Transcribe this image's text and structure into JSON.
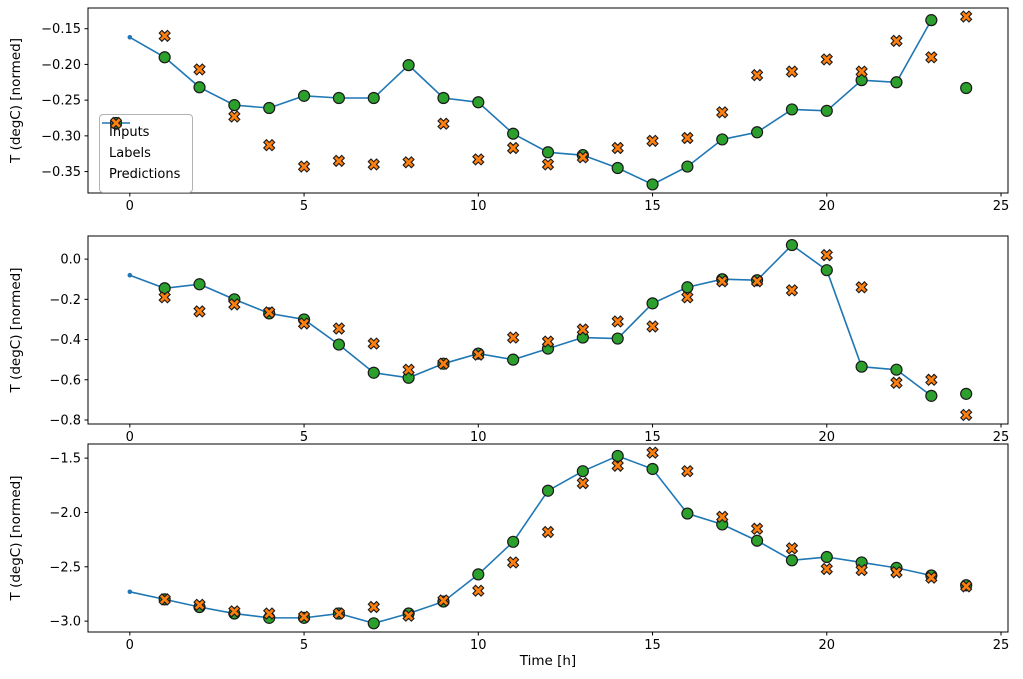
{
  "figure": {
    "xlabel": "Time [h]",
    "ylabel": "T (degC) [normed]",
    "background": "#ffffff",
    "colors": {
      "inputs": "#1f77b4",
      "labels": "#2ca02c",
      "predictions": "#ff7f0e",
      "marker_edge": "#1a1a1a",
      "axis": "#000000",
      "legend_border": "#b3b3b3"
    },
    "legend": {
      "position": "center-left-of-subplot-1",
      "entries": [
        {
          "label": "Inputs"
        },
        {
          "label": "Labels"
        },
        {
          "label": "Predictions"
        }
      ]
    }
  },
  "chart_data": [
    {
      "type": "line",
      "title": "",
      "xlabel": "",
      "ylabel": "T (degC) [normed]",
      "xlim": [
        -1.2,
        25.2
      ],
      "ylim": [
        -0.38,
        -0.121
      ],
      "xticks": [
        0,
        5,
        10,
        15,
        20,
        25
      ],
      "xtick_labels": [
        "0",
        "5",
        "10",
        "15",
        "20",
        "25"
      ],
      "yticks": [
        -0.15,
        -0.2,
        -0.25,
        -0.3,
        -0.35
      ],
      "ytick_labels": [
        "−0.15",
        "−0.20",
        "−0.25",
        "−0.30",
        "−0.35"
      ],
      "grid": false,
      "series": [
        {
          "name": "Inputs",
          "type": "line+dot",
          "x": [
            0,
            1,
            2,
            3,
            4,
            5,
            6,
            7,
            8,
            9,
            10,
            11,
            12,
            13,
            14,
            15,
            16,
            17,
            18,
            19,
            20,
            21,
            22,
            23
          ],
          "y": [
            -0.162,
            -0.19,
            -0.232,
            -0.257,
            -0.261,
            -0.244,
            -0.247,
            -0.247,
            -0.201,
            -0.247,
            -0.253,
            -0.297,
            -0.323,
            -0.327,
            -0.345,
            -0.368,
            -0.343,
            -0.305,
            -0.295,
            -0.263,
            -0.265,
            -0.222,
            -0.225,
            -0.138
          ]
        },
        {
          "name": "Labels",
          "type": "scatter-circle",
          "x": [
            1,
            2,
            3,
            4,
            5,
            6,
            7,
            8,
            9,
            10,
            11,
            12,
            13,
            14,
            15,
            16,
            17,
            18,
            19,
            20,
            21,
            22,
            23,
            24
          ],
          "y": [
            -0.19,
            -0.232,
            -0.257,
            -0.261,
            -0.244,
            -0.247,
            -0.247,
            -0.201,
            -0.247,
            -0.253,
            -0.297,
            -0.323,
            -0.327,
            -0.345,
            -0.368,
            -0.343,
            -0.305,
            -0.295,
            -0.263,
            -0.265,
            -0.222,
            -0.225,
            -0.138,
            -0.233
          ]
        },
        {
          "name": "Predictions",
          "type": "scatter-x",
          "x": [
            1,
            2,
            3,
            4,
            5,
            6,
            7,
            8,
            9,
            10,
            11,
            12,
            13,
            14,
            15,
            16,
            17,
            18,
            19,
            20,
            21,
            22,
            23,
            24
          ],
          "y": [
            -0.16,
            -0.207,
            -0.273,
            -0.313,
            -0.343,
            -0.335,
            -0.34,
            -0.337,
            -0.283,
            -0.333,
            -0.317,
            -0.34,
            -0.33,
            -0.317,
            -0.307,
            -0.303,
            -0.267,
            -0.215,
            -0.21,
            -0.193,
            -0.21,
            -0.167,
            -0.19,
            -0.133
          ]
        }
      ]
    },
    {
      "type": "line",
      "title": "",
      "xlabel": "",
      "ylabel": "T (degC) [normed]",
      "xlim": [
        -1.2,
        25.2
      ],
      "ylim": [
        -0.82,
        0.115
      ],
      "xticks": [
        0,
        5,
        10,
        15,
        20,
        25
      ],
      "xtick_labels": [
        "0",
        "5",
        "10",
        "15",
        "20",
        "25"
      ],
      "yticks": [
        0.0,
        -0.2,
        -0.4,
        -0.6,
        -0.8
      ],
      "ytick_labels": [
        "0.0",
        "−0.2",
        "−0.4",
        "−0.6",
        "−0.8"
      ],
      "grid": false,
      "series": [
        {
          "name": "Inputs",
          "type": "line+dot",
          "x": [
            0,
            1,
            2,
            3,
            4,
            5,
            6,
            7,
            8,
            9,
            10,
            11,
            12,
            13,
            14,
            15,
            16,
            17,
            18,
            19,
            20,
            21,
            22,
            23
          ],
          "y": [
            -0.08,
            -0.145,
            -0.125,
            -0.2,
            -0.27,
            -0.3,
            -0.425,
            -0.565,
            -0.59,
            -0.52,
            -0.47,
            -0.5,
            -0.445,
            -0.39,
            -0.395,
            -0.22,
            -0.14,
            -0.1,
            -0.105,
            0.07,
            -0.055,
            -0.535,
            -0.55,
            -0.68
          ]
        },
        {
          "name": "Labels",
          "type": "scatter-circle",
          "x": [
            1,
            2,
            3,
            4,
            5,
            6,
            7,
            8,
            9,
            10,
            11,
            12,
            13,
            14,
            15,
            16,
            17,
            18,
            19,
            20,
            21,
            22,
            23,
            24
          ],
          "y": [
            -0.145,
            -0.125,
            -0.2,
            -0.27,
            -0.3,
            -0.425,
            -0.565,
            -0.59,
            -0.52,
            -0.47,
            -0.5,
            -0.445,
            -0.39,
            -0.395,
            -0.22,
            -0.14,
            -0.1,
            -0.105,
            0.07,
            -0.055,
            -0.535,
            -0.55,
            -0.68,
            -0.67
          ]
        },
        {
          "name": "Predictions",
          "type": "scatter-x",
          "x": [
            1,
            2,
            3,
            4,
            5,
            6,
            7,
            8,
            9,
            10,
            11,
            12,
            13,
            14,
            15,
            16,
            17,
            18,
            19,
            20,
            21,
            22,
            23,
            24
          ],
          "y": [
            -0.19,
            -0.26,
            -0.225,
            -0.265,
            -0.32,
            -0.345,
            -0.42,
            -0.55,
            -0.52,
            -0.475,
            -0.39,
            -0.41,
            -0.35,
            -0.31,
            -0.335,
            -0.19,
            -0.11,
            -0.11,
            -0.155,
            0.02,
            -0.14,
            -0.615,
            -0.6,
            -0.775
          ]
        }
      ]
    },
    {
      "type": "line",
      "title": "",
      "xlabel": "Time [h]",
      "ylabel": "T (degC) [normed]",
      "xlim": [
        -1.2,
        25.2
      ],
      "ylim": [
        -3.1,
        -1.37
      ],
      "xticks": [
        0,
        5,
        10,
        15,
        20,
        25
      ],
      "xtick_labels": [
        "0",
        "5",
        "10",
        "15",
        "20",
        "25"
      ],
      "yticks": [
        -1.5,
        -2.0,
        -2.5,
        -3.0
      ],
      "ytick_labels": [
        "−1.5",
        "−2.0",
        "−2.5",
        "−3.0"
      ],
      "grid": false,
      "series": [
        {
          "name": "Inputs",
          "type": "line+dot",
          "x": [
            0,
            1,
            2,
            3,
            4,
            5,
            6,
            7,
            8,
            9,
            10,
            11,
            12,
            13,
            14,
            15,
            16,
            17,
            18,
            19,
            20,
            21,
            22,
            23
          ],
          "y": [
            -2.73,
            -2.8,
            -2.87,
            -2.93,
            -2.97,
            -2.97,
            -2.93,
            -3.02,
            -2.93,
            -2.82,
            -2.57,
            -2.27,
            -1.8,
            -1.62,
            -1.48,
            -1.6,
            -2.01,
            -2.11,
            -2.26,
            -2.44,
            -2.41,
            -2.46,
            -2.51,
            -2.58
          ]
        },
        {
          "name": "Labels",
          "type": "scatter-circle",
          "x": [
            1,
            2,
            3,
            4,
            5,
            6,
            7,
            8,
            9,
            10,
            11,
            12,
            13,
            14,
            15,
            16,
            17,
            18,
            19,
            20,
            21,
            22,
            23,
            24
          ],
          "y": [
            -2.8,
            -2.87,
            -2.93,
            -2.97,
            -2.97,
            -2.93,
            -3.02,
            -2.93,
            -2.82,
            -2.57,
            -2.27,
            -1.8,
            -1.62,
            -1.48,
            -1.6,
            -2.01,
            -2.11,
            -2.26,
            -2.44,
            -2.41,
            -2.46,
            -2.51,
            -2.58,
            -2.67
          ]
        },
        {
          "name": "Predictions",
          "type": "scatter-x",
          "x": [
            1,
            2,
            3,
            4,
            5,
            6,
            7,
            8,
            9,
            10,
            11,
            12,
            13,
            14,
            15,
            16,
            17,
            18,
            19,
            20,
            21,
            22,
            23,
            24
          ],
          "y": [
            -2.8,
            -2.85,
            -2.91,
            -2.93,
            -2.96,
            -2.93,
            -2.87,
            -2.95,
            -2.81,
            -2.72,
            -2.46,
            -2.18,
            -1.73,
            -1.57,
            -1.45,
            -1.62,
            -2.04,
            -2.15,
            -2.33,
            -2.52,
            -2.53,
            -2.55,
            -2.6,
            -2.68
          ]
        }
      ]
    }
  ]
}
